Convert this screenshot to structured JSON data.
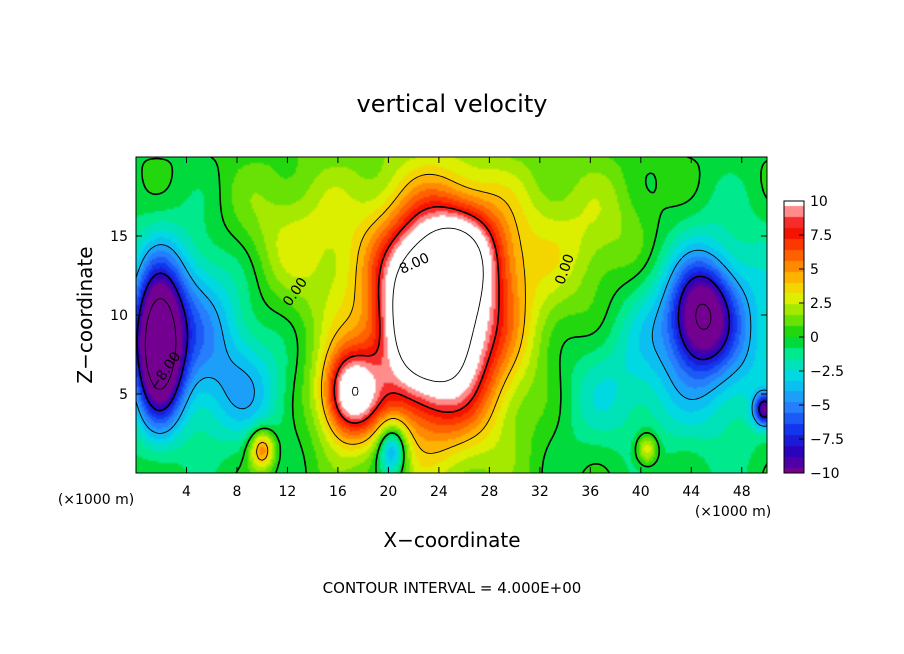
{
  "chart_data": {
    "type": "heatmap",
    "title": "vertical velocity",
    "xlabel": "X−coordinate",
    "ylabel": "Z−coordinate",
    "x_unit_left": "(×1000 m)",
    "x_unit_right": "(×1000 m)",
    "footer": "CONTOUR INTERVAL = 4.000E+00",
    "xlim": [
      0,
      50
    ],
    "ylim": [
      0,
      20
    ],
    "x_ticks": [
      4,
      8,
      12,
      16,
      20,
      24,
      28,
      32,
      36,
      40,
      44,
      48
    ],
    "y_ticks": [
      5,
      10,
      15
    ],
    "colorbar": {
      "range": [
        -10,
        10
      ],
      "ticks": [
        10,
        7.5,
        5,
        2.5,
        0,
        -2.5,
        -5,
        -7.5,
        -10
      ],
      "tick_labels": [
        "10",
        "7.5",
        "5",
        "2.5",
        "0",
        "−2.5",
        "−5",
        "−7.5",
        "−10"
      ]
    },
    "contour_labels": [
      {
        "text": "0.00",
        "x": 12.9,
        "z": 11.3,
        "rot": -55
      },
      {
        "text": "8.00",
        "x": 22.2,
        "z": 13.0,
        "rot": -25
      },
      {
        "text": "0.00",
        "x": 34.3,
        "z": 12.8,
        "rot": -70
      },
      {
        "text": "−8.00",
        "x": 2.6,
        "z": 6.3,
        "rot": -55
      }
    ],
    "field_features": [
      {
        "x": 24.0,
        "z": 9.5,
        "sx": 3.2,
        "sz": 4.5,
        "amp": 13
      },
      {
        "x": 25.5,
        "z": 14.0,
        "sx": 2.6,
        "sz": 2.2,
        "amp": 5
      },
      {
        "x": 21.5,
        "z": 10.5,
        "sx": 1.6,
        "sz": 3.0,
        "amp": 3
      },
      {
        "x": 24.5,
        "z": 11.0,
        "sx": 7.0,
        "sz": 7.0,
        "amp": 3.5
      },
      {
        "x": 17.0,
        "z": 5.0,
        "sx": 1.6,
        "sz": 2.0,
        "amp": 10
      },
      {
        "x": 10.0,
        "z": 1.5,
        "sx": 0.7,
        "sz": 0.9,
        "amp": 6
      },
      {
        "x": 40.5,
        "z": 1.5,
        "sx": 0.6,
        "sz": 0.7,
        "amp": 4
      },
      {
        "x": 1.8,
        "z": 8.0,
        "sx": 1.3,
        "sz": 3.2,
        "amp": -13
      },
      {
        "x": 4.0,
        "z": 9.5,
        "sx": 3.5,
        "sz": 4.0,
        "amp": -5
      },
      {
        "x": 44.8,
        "z": 10.0,
        "sx": 1.6,
        "sz": 2.2,
        "amp": -8
      },
      {
        "x": 45.0,
        "z": 9.0,
        "sx": 4.5,
        "sz": 4.5,
        "amp": -5
      },
      {
        "x": 20.3,
        "z": 1.5,
        "sx": 0.8,
        "sz": 1.2,
        "amp": -6
      },
      {
        "x": 49.8,
        "z": 4.0,
        "sx": 0.6,
        "sz": 0.7,
        "amp": -8
      },
      {
        "x": 12.0,
        "z": 15.0,
        "sx": 4.0,
        "sz": 3.0,
        "amp": 2
      },
      {
        "x": 37.0,
        "z": 15.0,
        "sx": 4.0,
        "sz": 3.0,
        "amp": 2
      },
      {
        "x": 9.0,
        "z": 5.0,
        "sx": 2.5,
        "sz": 2.5,
        "amp": -3
      },
      {
        "x": 36.0,
        "z": 5.0,
        "sx": 3.0,
        "sz": 3.0,
        "amp": -2
      }
    ],
    "grid": false
  }
}
